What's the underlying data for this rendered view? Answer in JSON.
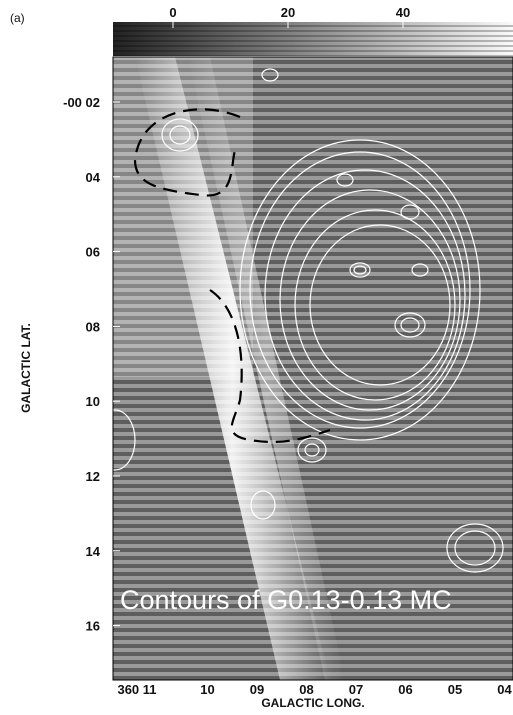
{
  "panel_label": "(a)",
  "colorbar": {
    "ticks": [
      "0",
      "20",
      "40"
    ]
  },
  "y_axis": {
    "title": "GALACTIC LAT.",
    "ticks": [
      "-00 02",
      "04",
      "06",
      "08",
      "10",
      "12",
      "14",
      "16"
    ]
  },
  "x_axis": {
    "title": "GALACTIC LONG.",
    "ticks": [
      "360 11",
      "10",
      "09",
      "08",
      "07",
      "06",
      "05",
      "04"
    ]
  },
  "overlay_text": "Contours of G0.13-0.13 MC"
}
